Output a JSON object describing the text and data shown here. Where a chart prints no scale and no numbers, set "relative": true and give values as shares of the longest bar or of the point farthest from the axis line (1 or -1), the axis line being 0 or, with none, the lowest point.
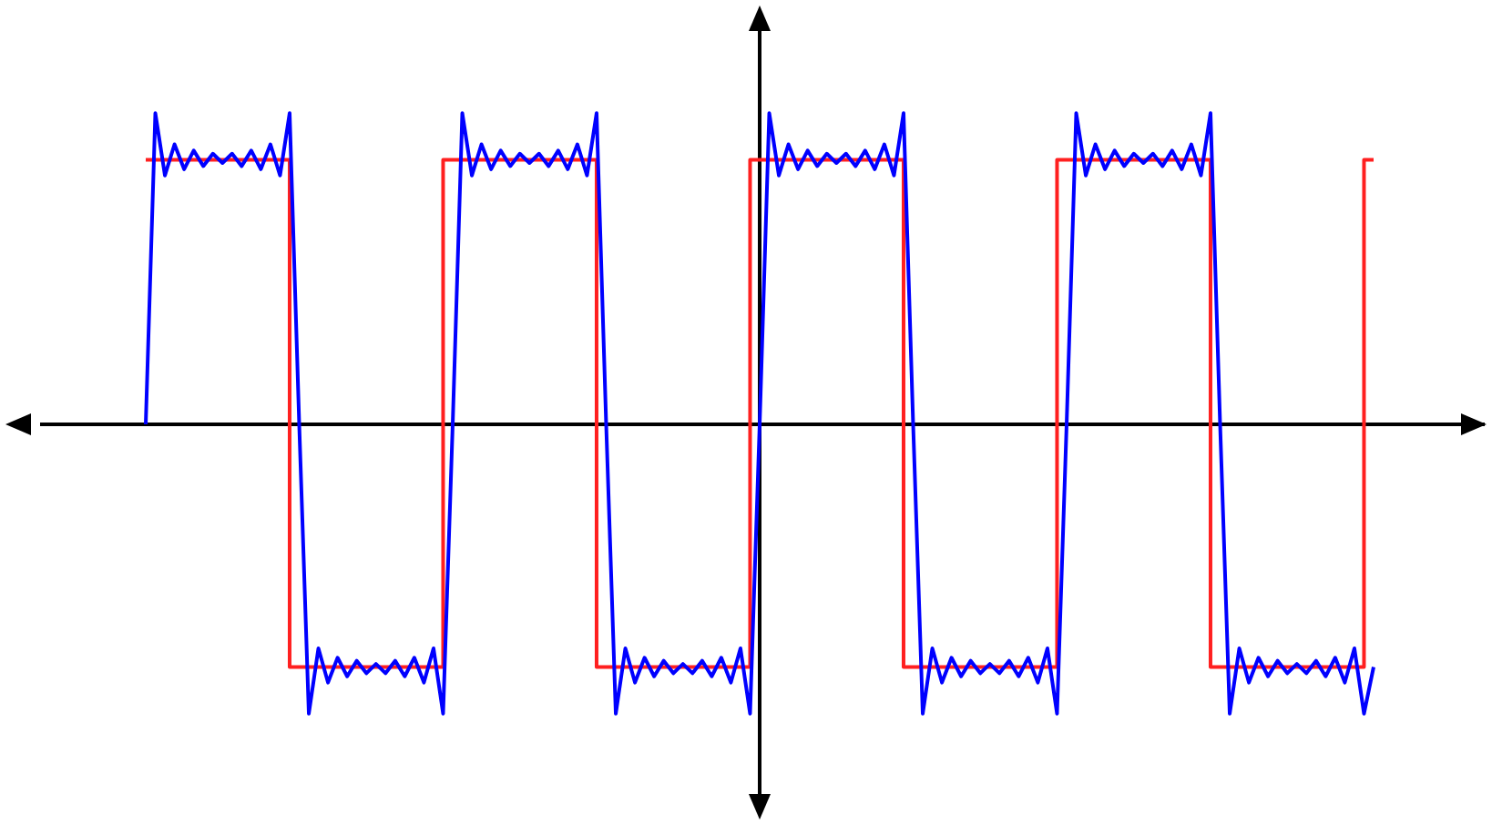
{
  "chart_data": {
    "type": "line",
    "relative": true,
    "legend": false,
    "tick_labels": false,
    "marker": "none",
    "line_style": "solid",
    "categories": [
      null,
      null,
      null,
      null,
      null,
      null,
      null,
      null,
      null,
      null,
      null,
      null,
      null,
      null,
      null,
      null,
      null,
      null,
      null,
      null,
      null,
      null,
      null,
      null,
      null,
      null,
      null,
      null,
      null,
      null,
      null,
      null,
      null,
      null,
      null,
      null,
      null,
      null,
      null,
      null,
      null,
      null,
      null,
      null,
      null,
      null,
      null,
      null,
      null,
      null,
      null,
      null,
      null,
      null,
      null,
      null,
      null,
      null,
      null,
      null,
      null,
      null,
      null,
      null,
      null,
      null,
      null,
      null,
      null,
      null,
      null,
      null,
      null,
      null,
      null,
      null,
      null,
      null,
      null,
      null,
      null,
      null,
      null,
      null,
      null,
      null,
      null,
      null,
      null,
      null,
      null,
      null,
      null,
      null,
      null,
      null,
      null,
      null,
      null,
      null,
      null,
      null,
      null,
      null,
      null,
      null,
      null,
      null,
      null,
      null,
      null,
      null,
      null,
      null,
      null,
      null,
      null,
      null,
      null,
      null,
      null,
      null,
      null,
      null,
      null,
      null,
      null,
      null,
      null
    ],
    "series": [
      {
        "color": "#0000ff",
        "values": [
          0,
          1.0,
          0.8,
          0.9,
          0.82,
          0.88,
          0.83,
          0.87,
          0.84,
          0.87,
          0.83,
          0.88,
          0.82,
          0.9,
          0.8,
          1.0,
          0,
          -0.93,
          -0.72,
          -0.83,
          -0.75,
          -0.81,
          -0.76,
          -0.8,
          -0.77,
          -0.8,
          -0.76,
          -0.81,
          -0.75,
          -0.83,
          -0.72,
          -0.93,
          0,
          1.0,
          0.8,
          0.9,
          0.82,
          0.88,
          0.83,
          0.87,
          0.84,
          0.87,
          0.83,
          0.88,
          0.82,
          0.9,
          0.8,
          1.0,
          0,
          -0.93,
          -0.72,
          -0.83,
          -0.75,
          -0.81,
          -0.76,
          -0.8,
          -0.77,
          -0.8,
          -0.76,
          -0.81,
          -0.75,
          -0.83,
          -0.72,
          -0.93,
          0,
          1.0,
          0.8,
          0.9,
          0.82,
          0.88,
          0.83,
          0.87,
          0.84,
          0.87,
          0.83,
          0.88,
          0.82,
          0.9,
          0.8,
          1.0,
          0,
          -0.93,
          -0.72,
          -0.83,
          -0.75,
          -0.81,
          -0.76,
          -0.8,
          -0.77,
          -0.8,
          -0.76,
          -0.81,
          -0.75,
          -0.83,
          -0.72,
          -0.93,
          0,
          1.0,
          0.8,
          0.9,
          0.82,
          0.88,
          0.83,
          0.87,
          0.84,
          0.87,
          0.83,
          0.88,
          0.82,
          0.9,
          0.8,
          1.0,
          0,
          -0.93,
          -0.72,
          -0.83,
          -0.75,
          -0.81,
          -0.76,
          -0.8,
          -0.77,
          -0.8,
          -0.76,
          -0.81,
          -0.75,
          -0.83,
          -0.72,
          -0.93,
          -0.78
        ]
      },
      {
        "type": "step",
        "color": "#ff2020",
        "values": [
          0.85,
          0.85,
          0.85,
          0.85,
          0.85,
          0.85,
          0.85,
          0.85,
          0.85,
          0.85,
          0.85,
          0.85,
          0.85,
          0.85,
          0.85,
          0.85,
          -0.78,
          -0.78,
          -0.78,
          -0.78,
          -0.78,
          -0.78,
          -0.78,
          -0.78,
          -0.78,
          -0.78,
          -0.78,
          -0.78,
          -0.78,
          -0.78,
          -0.78,
          -0.78,
          0.85,
          0.85,
          0.85,
          0.85,
          0.85,
          0.85,
          0.85,
          0.85,
          0.85,
          0.85,
          0.85,
          0.85,
          0.85,
          0.85,
          0.85,
          0.85,
          -0.78,
          -0.78,
          -0.78,
          -0.78,
          -0.78,
          -0.78,
          -0.78,
          -0.78,
          -0.78,
          -0.78,
          -0.78,
          -0.78,
          -0.78,
          -0.78,
          -0.78,
          -0.78,
          0.85,
          0.85,
          0.85,
          0.85,
          0.85,
          0.85,
          0.85,
          0.85,
          0.85,
          0.85,
          0.85,
          0.85,
          0.85,
          0.85,
          0.85,
          0.85,
          -0.78,
          -0.78,
          -0.78,
          -0.78,
          -0.78,
          -0.78,
          -0.78,
          -0.78,
          -0.78,
          -0.78,
          -0.78,
          -0.78,
          -0.78,
          -0.78,
          -0.78,
          -0.78,
          0.85,
          0.85,
          0.85,
          0.85,
          0.85,
          0.85,
          0.85,
          0.85,
          0.85,
          0.85,
          0.85,
          0.85,
          0.85,
          0.85,
          0.85,
          0.85,
          -0.78,
          -0.78,
          -0.78,
          -0.78,
          -0.78,
          -0.78,
          -0.78,
          -0.78,
          -0.78,
          -0.78,
          -0.78,
          -0.78,
          -0.78,
          -0.78,
          -0.78,
          -0.78,
          0.85
        ]
      }
    ]
  }
}
